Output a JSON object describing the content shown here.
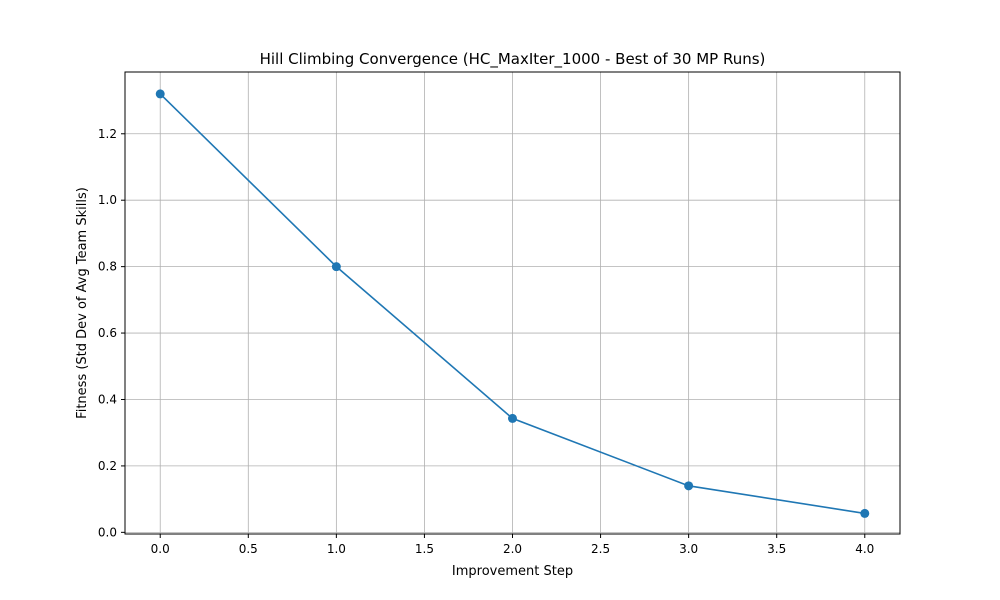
{
  "chart_data": {
    "type": "line",
    "title": "Hill Climbing Convergence (HC_MaxIter_1000 - Best of 30 MP Runs)",
    "xlabel": "Improvement Step",
    "ylabel": "Fitness (Std Dev of Avg Team Skills)",
    "xlim": [
      -0.2,
      4.2
    ],
    "ylim": [
      -0.005,
      1.386
    ],
    "xticks": [
      0.0,
      0.5,
      1.0,
      1.5,
      2.0,
      2.5,
      3.0,
      3.5,
      4.0
    ],
    "xtick_labels": [
      "0.0",
      "0.5",
      "1.0",
      "1.5",
      "2.0",
      "2.5",
      "3.0",
      "3.5",
      "4.0"
    ],
    "yticks": [
      0.0,
      0.2,
      0.4,
      0.6,
      0.8,
      1.0,
      1.2
    ],
    "ytick_labels": [
      "0.0",
      "0.2",
      "0.4",
      "0.6",
      "0.8",
      "1.0",
      "1.2"
    ],
    "grid": true,
    "series": [
      {
        "color": "#1f77b4",
        "marker": "circle",
        "x": [
          0,
          1,
          2,
          3,
          4
        ],
        "y": [
          1.32,
          0.8,
          0.343,
          0.14,
          0.057
        ]
      }
    ]
  }
}
